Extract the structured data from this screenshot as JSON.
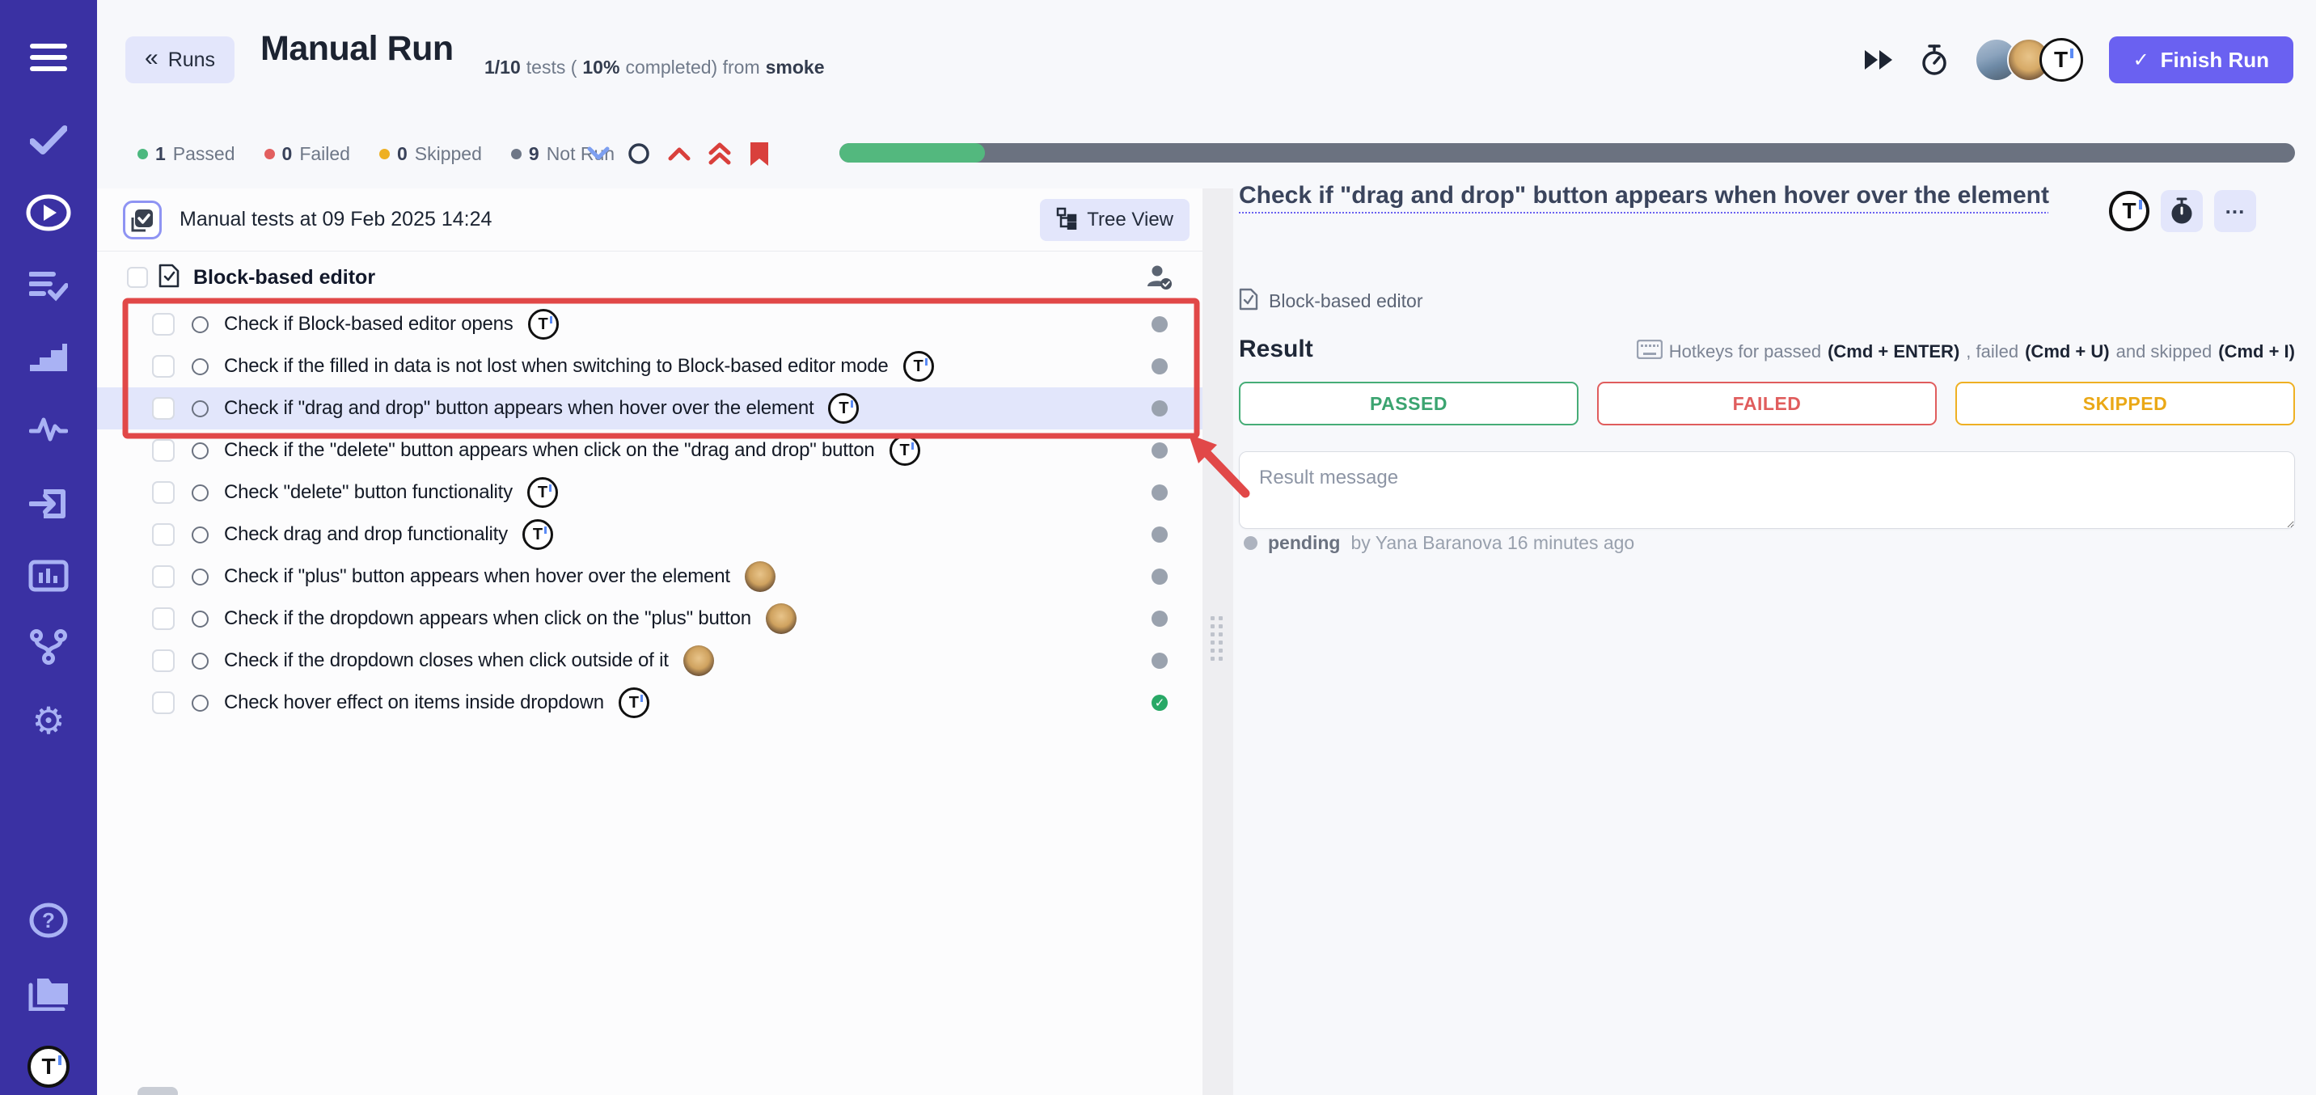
{
  "brand": {
    "logo_letter": "T"
  },
  "sidebar": {
    "items": [
      {
        "icon": "hamburger-menu"
      },
      {
        "icon": "tests-check"
      },
      {
        "icon": "test-runs-play",
        "active": true
      },
      {
        "icon": "checklist"
      },
      {
        "icon": "steps"
      },
      {
        "icon": "activity"
      },
      {
        "icon": "sign-in"
      },
      {
        "icon": "reports-chart"
      },
      {
        "icon": "integrations-branch"
      },
      {
        "icon": "settings-gear"
      },
      {
        "icon": "help"
      },
      {
        "icon": "projects-folder"
      },
      {
        "icon": "profile-logo"
      }
    ]
  },
  "header": {
    "back_label": "Runs",
    "title": "Manual Run",
    "summary": {
      "count": "1/10",
      "mid1": "tests (",
      "pct": "10%",
      "mid2": "completed) from",
      "plan": "smoke"
    },
    "finish_label": "Finish Run"
  },
  "status_bar": {
    "chips": [
      {
        "count": "1",
        "label": "Passed",
        "color": "#4cb87f"
      },
      {
        "count": "0",
        "label": "Failed",
        "color": "#e25f5f"
      },
      {
        "count": "0",
        "label": "Skipped",
        "color": "#eeb023"
      },
      {
        "count": "9",
        "label": "Not Run",
        "color": "#6e7787"
      }
    ],
    "filters": [
      "chevron-down",
      "circle",
      "chevron-up",
      "double-chevron-up",
      "bookmark"
    ]
  },
  "progress": {
    "percent": 10
  },
  "left_panel": {
    "run_title": "Manual tests at 09 Feb 2025 14:24",
    "tree_view_label": "Tree View",
    "suite_title": "Block-based editor",
    "tests": [
      {
        "title": "Check if Block-based editor opens",
        "avatar": "logo",
        "status": "not-run",
        "selected": false
      },
      {
        "title": "Check if the filled in data is not lost when switching to Block-based editor mode",
        "avatar": "logo",
        "status": "not-run",
        "selected": false
      },
      {
        "title": "Check if \"drag and drop\" button appears when hover over the element",
        "avatar": "logo",
        "status": "not-run",
        "selected": true
      },
      {
        "title": "Check if the \"delete\" button appears when click on the \"drag and drop\" button",
        "avatar": "logo",
        "status": "not-run",
        "selected": false
      },
      {
        "title": "Check \"delete\" button functionality",
        "avatar": "logo",
        "status": "not-run",
        "selected": false
      },
      {
        "title": "Check drag and drop functionality",
        "avatar": "logo",
        "status": "not-run",
        "selected": false
      },
      {
        "title": "Check if \"plus\" button appears when hover over the element",
        "avatar": "photo",
        "status": "not-run",
        "selected": false
      },
      {
        "title": "Check if the dropdown appears when click on the \"plus\" button",
        "avatar": "photo",
        "status": "not-run",
        "selected": false
      },
      {
        "title": "Check if the dropdown closes when click outside of it",
        "avatar": "photo",
        "status": "not-run",
        "selected": false
      },
      {
        "title": "Check hover effect on items inside dropdown",
        "avatar": "logo",
        "status": "passed",
        "selected": false
      }
    ]
  },
  "right_panel": {
    "title": "Check if \"drag and drop\" button appears when hover over the element",
    "suite": "Block-based editor",
    "result_heading": "Result",
    "hotkeys": [
      {
        "text": "Hotkeys for passed ",
        "bold": false
      },
      {
        "text": "(Cmd + ENTER)",
        "bold": true
      },
      {
        "text": " , failed ",
        "bold": false
      },
      {
        "text": "(Cmd + U)",
        "bold": true
      },
      {
        "text": " and skipped ",
        "bold": false
      },
      {
        "text": "(Cmd + I)",
        "bold": true
      }
    ],
    "buttons": {
      "passed": "PASSED",
      "failed": "FAILED",
      "skipped": "SKIPPED"
    },
    "message_placeholder": "Result message",
    "status": {
      "label": "pending",
      "by": "by Yana Baranova 16 minutes ago"
    }
  },
  "annotation": {
    "color": "#e14848"
  }
}
